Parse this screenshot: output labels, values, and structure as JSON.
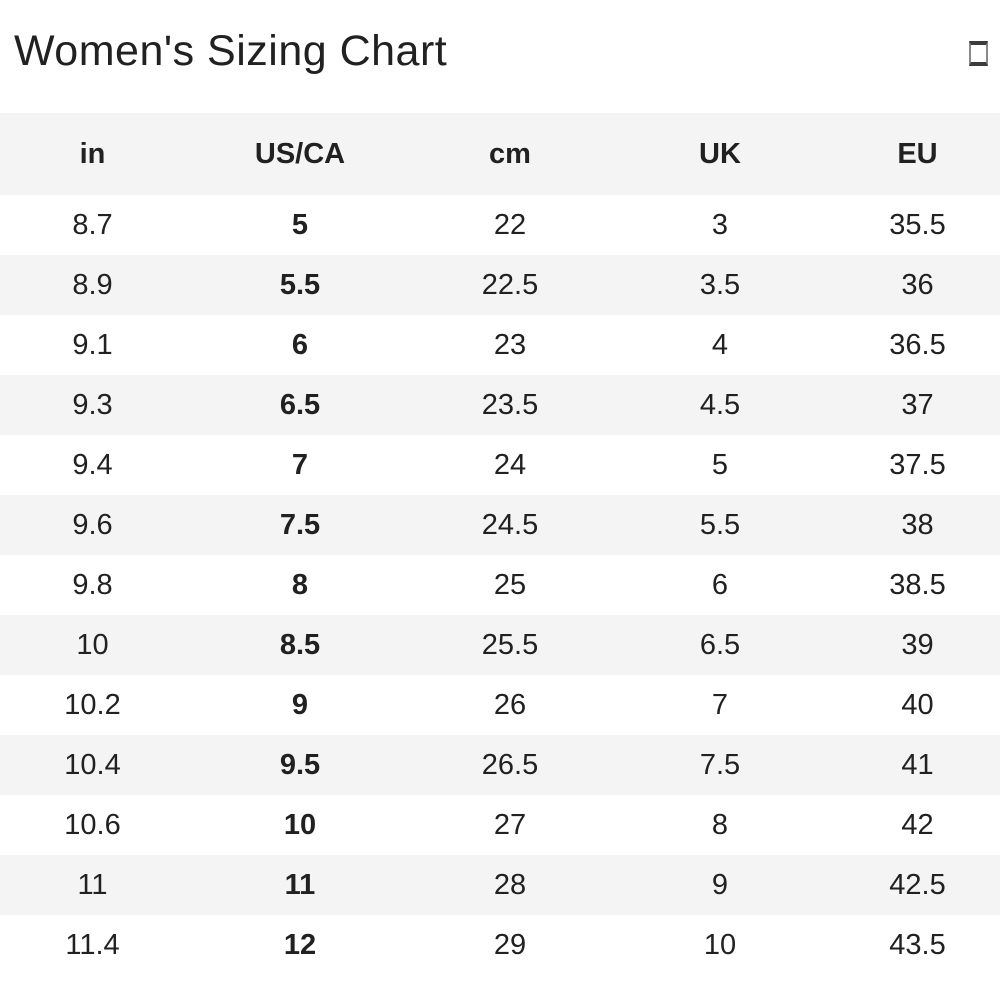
{
  "page": {
    "title": "Women's Sizing Chart",
    "header_icon": "missing-glyph-box-icon"
  },
  "colors": {
    "background": "#ffffff",
    "stripe": "#f4f4f4",
    "text": "#212121"
  },
  "table": {
    "columns": [
      "in",
      "US/CA",
      "cm",
      "UK",
      "EU"
    ],
    "bold_column_index": 1,
    "rows": [
      [
        "8.7",
        "5",
        "22",
        "3",
        "35.5"
      ],
      [
        "8.9",
        "5.5",
        "22.5",
        "3.5",
        "36"
      ],
      [
        "9.1",
        "6",
        "23",
        "4",
        "36.5"
      ],
      [
        "9.3",
        "6.5",
        "23.5",
        "4.5",
        "37"
      ],
      [
        "9.4",
        "7",
        "24",
        "5",
        "37.5"
      ],
      [
        "9.6",
        "7.5",
        "24.5",
        "5.5",
        "38"
      ],
      [
        "9.8",
        "8",
        "25",
        "6",
        "38.5"
      ],
      [
        "10",
        "8.5",
        "25.5",
        "6.5",
        "39"
      ],
      [
        "10.2",
        "9",
        "26",
        "7",
        "40"
      ],
      [
        "10.4",
        "9.5",
        "26.5",
        "7.5",
        "41"
      ],
      [
        "10.6",
        "10",
        "27",
        "8",
        "42"
      ],
      [
        "11",
        "11",
        "28",
        "9",
        "42.5"
      ],
      [
        "11.4",
        "12",
        "29",
        "10",
        "43.5"
      ]
    ]
  }
}
